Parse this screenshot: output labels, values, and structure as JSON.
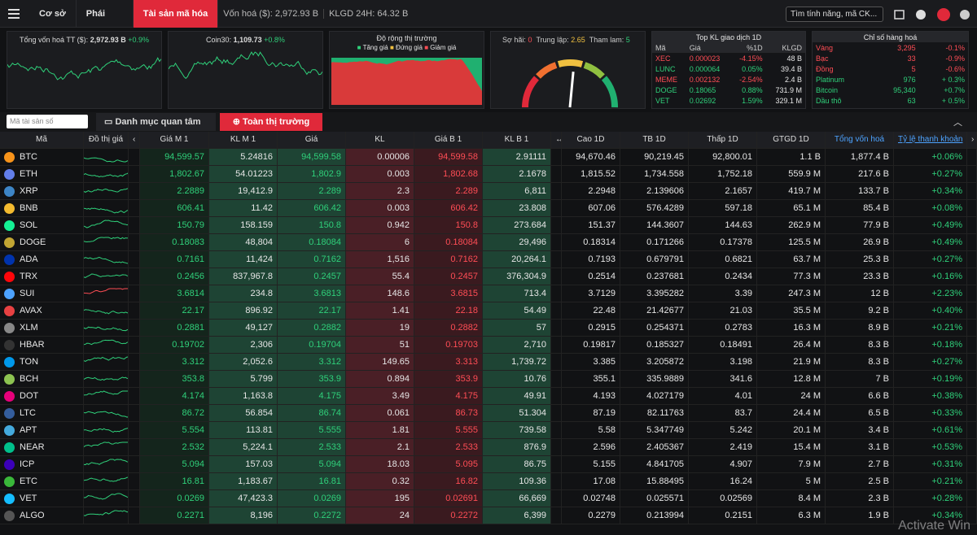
{
  "topbar": {
    "tabs": [
      "Cơ sở",
      "Phái sinh",
      "Tài sản mã hóa"
    ],
    "market_cap": "Vốn hoá ($): 2,972.93 B",
    "volume": "KLGD 24H: 64.32 B",
    "search": "Tìm tính năng, mã CK..."
  },
  "widgets": {
    "market_cap": {
      "label": "Tổng vốn hoá TT ($):",
      "value": "2,972.93 B",
      "change": "+0.9%"
    },
    "coin30": {
      "label": "Coin30:",
      "value": "1,109.73",
      "change": "+0.8%"
    },
    "breadth": {
      "title": "Độ rộng thị trường",
      "legend": [
        "Tăng giá",
        "Đứng giá",
        "Giảm giá"
      ]
    },
    "sentiment": {
      "fear": "Sợ hãi:",
      "fear_value": 0,
      "neutral": "Trung lập:",
      "neutral_value": 2.65,
      "greed": "Tham lam:",
      "greed_value": 5
    },
    "top_volume": {
      "title": "Top KL giao dịch 1D",
      "columns": [
        "Mã",
        "Giá",
        "%1D",
        "KLGD"
      ],
      "rows": [
        [
          "XEC",
          "0.000023",
          "-4.15%",
          "48 B"
        ],
        [
          "LUNC",
          "0.000064",
          "0.05%",
          "39.4 B"
        ],
        [
          "MEME",
          "0.002132",
          "-2.54%",
          "2.4 B"
        ],
        [
          "DOGE",
          "0.18065",
          "0.88%",
          "731.9 M"
        ],
        [
          "VET",
          "0.02692",
          "1.59%",
          "329.1 M"
        ]
      ]
    },
    "commodities": {
      "title": "Chỉ số hàng hoá",
      "rows": [
        [
          "Vàng",
          "3,295",
          "-0.1%"
        ],
        [
          "Bạc",
          "33",
          "-0.9%"
        ],
        [
          "Đồng",
          "5",
          "-0.6%"
        ],
        [
          "Platinum",
          "976",
          "+ 0.3%"
        ],
        [
          "Bitcoin",
          "95,340",
          "+0.7%"
        ],
        [
          "Dầu thô",
          "63",
          "+ 0.5%"
        ]
      ]
    }
  },
  "toolbar": {
    "search": "Mã tài sản số",
    "watchlist": "Danh mục quan tâm",
    "market": "Toàn thị trường"
  },
  "table": {
    "columns": [
      "Mã",
      "Đồ thị giá",
      "Giá M 1",
      "KL M 1",
      "Giá",
      "KL",
      "Giá B 1",
      "KL B 1",
      "Cao 1D",
      "TB 1D",
      "Thấp 1D",
      "GTGD 1D",
      "Tổng vốn hoá",
      "Tỷ lệ thanh khoản"
    ],
    "rows": [
      [
        "BTC",
        "94,599.57",
        "5.24816",
        "94,599.58",
        "0.00006",
        "94,599.58",
        "2.91111",
        "94,670.46",
        "90,219.45",
        "92,800.01",
        "1.1 B",
        "1,877.4 B",
        "+0.06%"
      ],
      [
        "ETH",
        "1,802.67",
        "54.01223",
        "1,802.9",
        "0.003",
        "1,802.68",
        "2.1678",
        "1,815.52",
        "1,734.558",
        "1,752.18",
        "559.9 M",
        "217.6 B",
        "+0.27%"
      ],
      [
        "XRP",
        "2.2889",
        "19,412.9",
        "2.289",
        "2.3",
        "2.289",
        "6,811",
        "2.2948",
        "2.139606",
        "2.1657",
        "419.7 M",
        "133.7 B",
        "+0.34%"
      ],
      [
        "BNB",
        "606.41",
        "11.42",
        "606.42",
        "0.003",
        "606.42",
        "23.808",
        "607.06",
        "576.4289",
        "597.18",
        "65.1 M",
        "85.4 B",
        "+0.08%"
      ],
      [
        "SOL",
        "150.79",
        "158.159",
        "150.8",
        "0.942",
        "150.8",
        "273.684",
        "151.37",
        "144.3607",
        "144.63",
        "262.9 M",
        "77.9 B",
        "+0.49%"
      ],
      [
        "DOGE",
        "0.18083",
        "48,804",
        "0.18084",
        "6",
        "0.18084",
        "29,496",
        "0.18314",
        "0.171266",
        "0.17378",
        "125.5 M",
        "26.9 B",
        "+0.49%"
      ],
      [
        "ADA",
        "0.7161",
        "11,424",
        "0.7162",
        "1,516",
        "0.7162",
        "20,264.1",
        "0.7193",
        "0.679791",
        "0.6821",
        "63.7 M",
        "25.3 B",
        "+0.27%"
      ],
      [
        "TRX",
        "0.2456",
        "837,967.8",
        "0.2457",
        "55.4",
        "0.2457",
        "376,304.9",
        "0.2514",
        "0.237681",
        "0.2434",
        "77.3 M",
        "23.3 B",
        "+0.16%"
      ],
      [
        "SUI",
        "3.6814",
        "234.8",
        "3.6813",
        "148.6",
        "3.6815",
        "713.4",
        "3.7129",
        "3.395282",
        "3.39",
        "247.3 M",
        "12 B",
        "+2.23%"
      ],
      [
        "AVAX",
        "22.17",
        "896.92",
        "22.17",
        "1.41",
        "22.18",
        "54.49",
        "22.48",
        "21.42677",
        "21.03",
        "35.5 M",
        "9.2 B",
        "+0.40%"
      ],
      [
        "XLM",
        "0.2881",
        "49,127",
        "0.2882",
        "19",
        "0.2882",
        "57",
        "0.2915",
        "0.254371",
        "0.2783",
        "16.3 M",
        "8.9 B",
        "+0.21%"
      ],
      [
        "HBAR",
        "0.19702",
        "2,306",
        "0.19704",
        "51",
        "0.19703",
        "2,710",
        "0.19817",
        "0.185327",
        "0.18491",
        "26.4 M",
        "8.3 B",
        "+0.18%"
      ],
      [
        "TON",
        "3.312",
        "2,052.6",
        "3.312",
        "149.65",
        "3.313",
        "1,739.72",
        "3.385",
        "3.205872",
        "3.198",
        "21.9 M",
        "8.3 B",
        "+0.27%"
      ],
      [
        "BCH",
        "353.8",
        "5.799",
        "353.9",
        "0.894",
        "353.9",
        "10.76",
        "355.1",
        "335.9889",
        "341.6",
        "12.8 M",
        "7 B",
        "+0.19%"
      ],
      [
        "DOT",
        "4.174",
        "1,163.8",
        "4.175",
        "3.49",
        "4.175",
        "49.91",
        "4.193",
        "4.027179",
        "4.01",
        "24 M",
        "6.6 B",
        "+0.38%"
      ],
      [
        "LTC",
        "86.72",
        "56.854",
        "86.74",
        "0.061",
        "86.73",
        "51.304",
        "87.19",
        "82.11763",
        "83.7",
        "24.4 M",
        "6.5 B",
        "+0.33%"
      ],
      [
        "APT",
        "5.554",
        "113.81",
        "5.555",
        "1.81",
        "5.555",
        "739.58",
        "5.58",
        "5.347749",
        "5.242",
        "20.1 M",
        "3.4 B",
        "+0.61%"
      ],
      [
        "NEAR",
        "2.532",
        "5,224.1",
        "2.533",
        "2.1",
        "2.533",
        "876.9",
        "2.596",
        "2.405367",
        "2.419",
        "15.4 M",
        "3.1 B",
        "+0.53%"
      ],
      [
        "ICP",
        "5.094",
        "157.03",
        "5.094",
        "18.03",
        "5.095",
        "86.75",
        "5.155",
        "4.841705",
        "4.907",
        "7.9 M",
        "2.7 B",
        "+0.31%"
      ],
      [
        "ETC",
        "16.81",
        "1,183.67",
        "16.81",
        "0.32",
        "16.82",
        "109.36",
        "17.08",
        "15.88495",
        "16.24",
        "5 M",
        "2.5 B",
        "+0.21%"
      ],
      [
        "VET",
        "0.0269",
        "47,423.3",
        "0.0269",
        "195",
        "0.02691",
        "66,669",
        "0.02748",
        "0.025571",
        "0.02569",
        "8.4 M",
        "2.3 B",
        "+0.28%"
      ],
      [
        "ALGO",
        "0.2271",
        "8,196",
        "0.2272",
        "24",
        "0.2272",
        "6,399",
        "0.2279",
        "0.213994",
        "0.2151",
        "6.3 M",
        "1.9 B",
        "+0.34%"
      ]
    ]
  },
  "watermark": "Activate Win"
}
